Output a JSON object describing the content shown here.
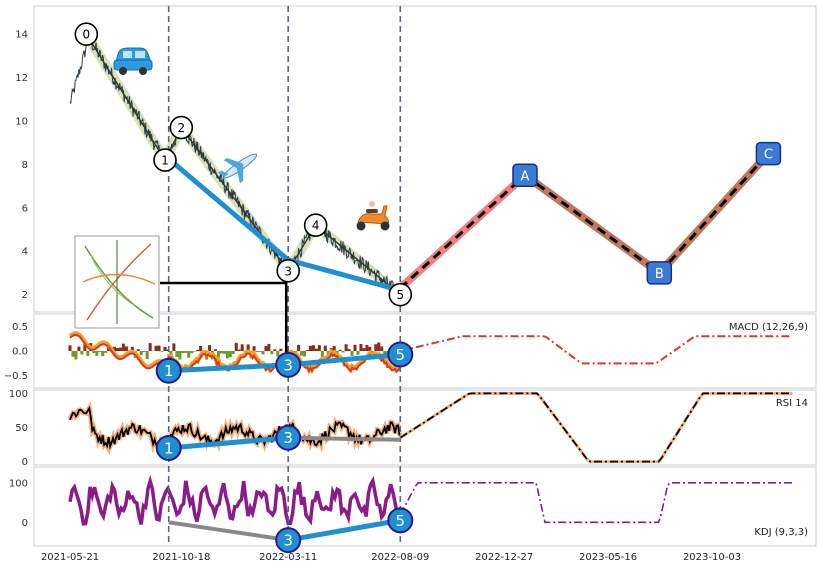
{
  "chart_data": {
    "type": "line",
    "x_ticks": [
      "2021-05-21",
      "2021-10-18",
      "2022-03-11",
      "2022-08-09",
      "2022-12-27",
      "2023-05-16",
      "2023-10-03"
    ],
    "panels": [
      {
        "id": "price",
        "label": "",
        "y_ticks": [
          2,
          4,
          6,
          8,
          10,
          12,
          14
        ],
        "ylim": [
          1.2,
          15.3
        ],
        "wave_points": [
          {
            "label": "0",
            "date": "2021-06-12",
            "value": 14.0
          },
          {
            "label": "1",
            "date": "2021-09-26",
            "value": 8.2
          },
          {
            "label": "2",
            "date": "2021-10-18",
            "value": 9.7
          },
          {
            "label": "3",
            "date": "2022-03-11",
            "value": 3.1
          },
          {
            "label": "4",
            "date": "2022-04-17",
            "value": 5.2
          },
          {
            "label": "5",
            "date": "2022-08-09",
            "value": 2.0
          }
        ],
        "projection_points": [
          {
            "label": "A",
            "date": "2023-01-24",
            "value": 7.5
          },
          {
            "label": "B",
            "date": "2023-07-24",
            "value": 3.0
          },
          {
            "label": "C",
            "date": "2023-12-18",
            "value": 8.5
          }
        ]
      },
      {
        "id": "macd",
        "label": "MACD (12,26,9)",
        "y_ticks": [
          -0.5,
          0.0,
          0.5
        ],
        "y_tick_labels": [
          "−0.5",
          "0.0",
          "0.5"
        ],
        "ylim": [
          -0.75,
          0.75
        ],
        "markers": [
          {
            "label": "1",
            "date": "2021-10-01",
            "value": -0.4
          },
          {
            "label": "3",
            "date": "2022-03-11",
            "value": -0.28
          },
          {
            "label": "5",
            "date": "2022-08-09",
            "value": -0.07
          }
        ]
      },
      {
        "id": "rsi",
        "label": "RSI 14",
        "y_ticks": [
          0,
          50,
          100
        ],
        "ylim": [
          -5,
          105
        ],
        "markers": [
          {
            "label": "1",
            "date": "2021-10-01",
            "value": 20
          },
          {
            "label": "3",
            "date": "2022-03-11",
            "value": 35
          }
        ]
      },
      {
        "id": "kdj",
        "label": "KDJ (9,3,3)",
        "y_ticks": [
          0,
          100
        ],
        "ylim": [
          -60,
          140
        ],
        "markers": [
          {
            "label": "3",
            "date": "2022-03-11",
            "value": -45
          },
          {
            "label": "5",
            "date": "2022-08-09",
            "value": 5
          }
        ]
      }
    ],
    "vlines": [
      "2021-10-01",
      "2022-03-11",
      "2022-08-09"
    ],
    "grid": true,
    "colors": {
      "price_line": "#2c3e50",
      "wave_fill": "#d8e0b8",
      "trend_blue": "#1f8fd1",
      "projection_pink": "#f08080",
      "projection_brown": "#c0785a",
      "macd_red": "#d83a2a",
      "macd_orange": "#f5a020",
      "rsi_black": "#000000",
      "rsi_peach": "#f5b080",
      "kdj_purple": "#8b1a8b",
      "connector_gray": "#888888",
      "label_box": "#3a7bd5"
    },
    "icons": [
      "car-icon",
      "airplane-icon",
      "scooter-icon",
      "photo-thumbnail-icon"
    ]
  }
}
